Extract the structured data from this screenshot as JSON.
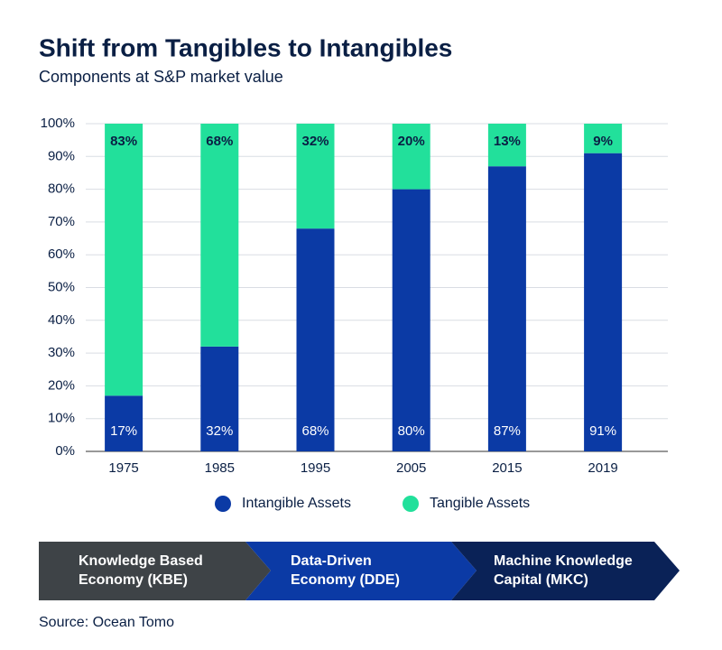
{
  "chart_data": {
    "type": "stacked_bar",
    "title": "Shift from Tangibles to Intangibles",
    "subtitle": "Components at S&P market value",
    "categories": [
      "1975",
      "1985",
      "1995",
      "2005",
      "2015",
      "2019"
    ],
    "series": [
      {
        "name": "Intangible Assets",
        "color": "#0b3aa5",
        "values": [
          17,
          32,
          68,
          80,
          87,
          91
        ],
        "value_labels": [
          "17%",
          "32%",
          "68%",
          "80%",
          "87%",
          "91%"
        ]
      },
      {
        "name": "Tangible Assets",
        "color": "#22e09b",
        "values": [
          83,
          68,
          32,
          20,
          13,
          9
        ],
        "value_labels": [
          "83%",
          "68%",
          "32%",
          "20%",
          "13%",
          "9%"
        ]
      }
    ],
    "ylim": [
      0,
      100
    ],
    "yticks": [
      {
        "value": 0,
        "label": "0%"
      },
      {
        "value": 10,
        "label": "10%"
      },
      {
        "value": 20,
        "label": "20%"
      },
      {
        "value": 30,
        "label": "30%"
      },
      {
        "value": 40,
        "label": "40%"
      },
      {
        "value": 50,
        "label": "50%"
      },
      {
        "value": 60,
        "label": "60%"
      },
      {
        "value": 70,
        "label": "70%"
      },
      {
        "value": 80,
        "label": "80%"
      },
      {
        "value": 90,
        "label": "90%"
      },
      {
        "value": 100,
        "label": "100%"
      }
    ],
    "grid": true,
    "legend": "bottom"
  },
  "banner": [
    {
      "lines": [
        "Knowledge Based",
        "Economy (KBE)"
      ]
    },
    {
      "lines": [
        "Data-Driven",
        "Economy (DDE)"
      ]
    },
    {
      "lines": [
        "Machine Knowledge",
        "Capital (MKC)"
      ]
    }
  ],
  "source": "Source: Ocean Tomo"
}
